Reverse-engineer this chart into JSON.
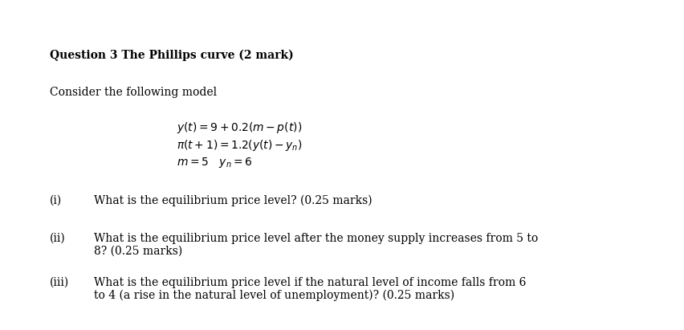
{
  "bg_color": "#ffffff",
  "title": "Question 3 The Phillips curve (2 mark)",
  "subtitle": "Consider the following model",
  "eq1": "$y(t)=9+0.2(m-p(t))$",
  "eq2": "$\\pi(t+1)=1.2(y(t)-y_n)$",
  "eq3": "$m=5 \\quad y_n=6$",
  "item_i_label": "(i)",
  "item_i_text": "What is the equilibrium price level? (0.25 marks)",
  "item_ii_label": "(ii)",
  "item_ii_text1": "What is the equilibrium price level after the money supply increases from 5 to",
  "item_ii_text2": "8? (0.25 marks)",
  "item_iii_label": "(iii)",
  "item_iii_text1": "What is the equilibrium price level if the natural level of income falls from 6",
  "item_iii_text2": "to 4 (a rise in the natural level of unemployment)? (0.25 marks)",
  "title_fontsize": 10,
  "body_fontsize": 10,
  "eq_fontsize": 10,
  "figw": 8.52,
  "figh": 4.11,
  "dpi": 100
}
